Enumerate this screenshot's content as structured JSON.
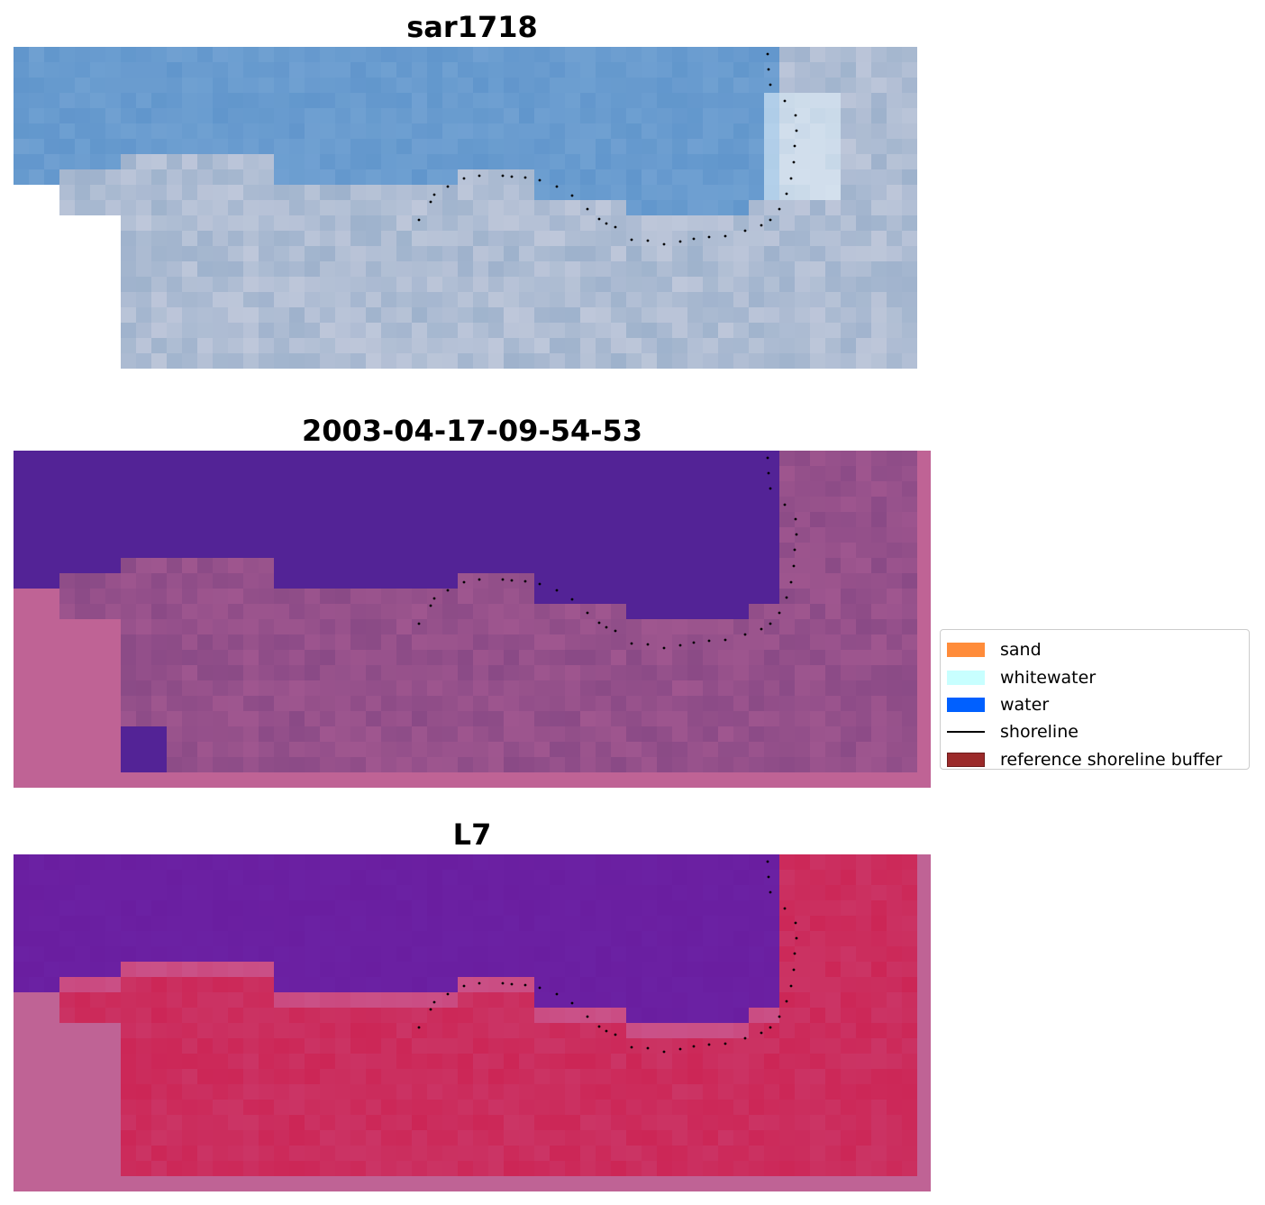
{
  "panels": [
    {
      "title": "sar1718",
      "kind": "rgb"
    },
    {
      "title": "2003-04-17-09-54-53",
      "kind": "classified"
    },
    {
      "title": "L7",
      "kind": "index"
    }
  ],
  "legend": {
    "items": [
      {
        "label": "sand",
        "color": "#ff8c3a",
        "type": "patch"
      },
      {
        "label": "whitewater",
        "color": "#c8ffff",
        "type": "patch"
      },
      {
        "label": "water",
        "color": "#0060ff",
        "type": "patch"
      },
      {
        "label": "shoreline",
        "color": "#000000",
        "type": "line"
      },
      {
        "label": "reference shoreline buffer",
        "color": "#9b2a2a",
        "type": "patch"
      }
    ]
  },
  "colors": {
    "rgb_water": "#6196cc",
    "rgb_land": "#9eb2cc",
    "class_water": "#532396",
    "class_land": "#8a4a86",
    "buffer_pink": "#bf6395",
    "index_water": "#6a1ea0",
    "index_land": "#cc2656"
  }
}
